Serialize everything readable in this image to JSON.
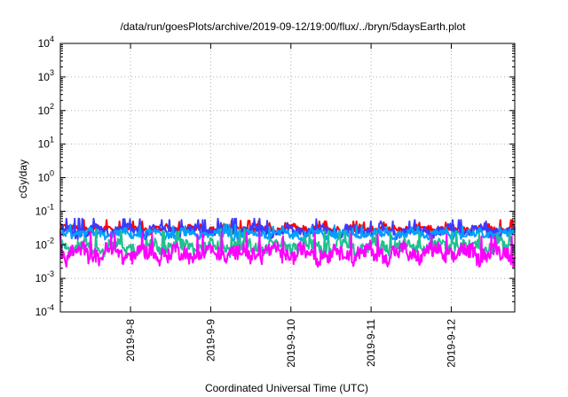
{
  "chart_data": {
    "type": "line",
    "title": "/data/run/goesPlots/archive/2019-09-12/19:00/flux/../bryn/5daysEarth.plot",
    "xlabel": "Coordinated Universal Time (UTC)",
    "ylabel": "cGy/day",
    "yscale": "log",
    "ylim": [
      0.0001,
      10000
    ],
    "xlim": [
      "2019-09-07 03:00",
      "2019-09-12 19:00"
    ],
    "grid": true,
    "legend": "none",
    "y_ticks": [
      {
        "exp": -4,
        "base": "10",
        "sup": "-4"
      },
      {
        "exp": -3,
        "base": "10",
        "sup": "-3"
      },
      {
        "exp": -2,
        "base": "10",
        "sup": "-2"
      },
      {
        "exp": -1,
        "base": "10",
        "sup": "-1"
      },
      {
        "exp": 0,
        "base": "10",
        "sup": "0"
      },
      {
        "exp": 1,
        "base": "10",
        "sup": "1"
      },
      {
        "exp": 2,
        "base": "10",
        "sup": "2"
      },
      {
        "exp": 3,
        "base": "10",
        "sup": "3"
      },
      {
        "exp": 4,
        "base": "10",
        "sup": "4"
      }
    ],
    "x_ticks": [
      {
        "label": "2019-9-8",
        "time": "2019-09-08 00:00"
      },
      {
        "label": "2019-9-9",
        "time": "2019-09-09 00:00"
      },
      {
        "label": "2019-9-10",
        "time": "2019-09-10 00:00"
      },
      {
        "label": "2019-9-11",
        "time": "2019-09-11 00:00"
      },
      {
        "label": "2019-9-12",
        "time": "2019-09-12 00:00"
      }
    ],
    "series": [
      {
        "color": "#ff0000",
        "base": 0.03,
        "amp": 0.3,
        "spikes": [
          0.055,
          0.05,
          0.048,
          0.052,
          0.045,
          0.05,
          0.047,
          0.046,
          0.055
        ]
      },
      {
        "color": "#3b3bff",
        "base": 0.026,
        "amp": 0.45,
        "spikes": [
          0.06,
          0.058,
          0.055,
          0.06,
          0.052,
          0.058,
          0.05,
          0.055,
          0.05
        ]
      },
      {
        "color": "#00a0ff",
        "base": 0.021,
        "amp": 0.35,
        "spikes": [
          0.04,
          0.038,
          0.036,
          0.04,
          0.035,
          0.038,
          0.034,
          0.036,
          0.035
        ]
      },
      {
        "color": "#20c090",
        "base": 0.009,
        "amp": 0.55,
        "spikes": [
          0.03,
          0.028,
          0.025,
          0.03,
          0.022,
          0.026,
          0.024,
          0.025,
          0.022
        ]
      },
      {
        "color": "#ff00ff",
        "base": 0.0055,
        "amp": 0.7,
        "spikes": [
          0.025,
          0.022,
          0.02,
          0.024,
          0.018,
          0.022,
          0.02,
          0.021,
          0.018
        ]
      }
    ]
  }
}
